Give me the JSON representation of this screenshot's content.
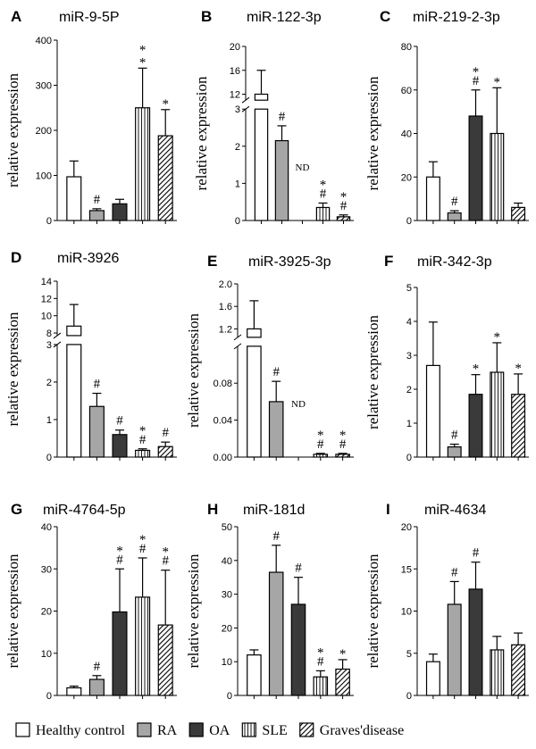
{
  "legend": {
    "items": [
      {
        "label": "Healthy control",
        "style": "white"
      },
      {
        "label": "RA",
        "style": "lightgray"
      },
      {
        "label": "OA",
        "style": "darkgray"
      },
      {
        "label": "SLE",
        "style": "vstripe"
      },
      {
        "label": "Graves'disease",
        "style": "diag"
      }
    ]
  },
  "colors": {
    "white": "#ffffff",
    "lightgray": "#a6a6a6",
    "darkgray": "#3a3a3a",
    "stroke": "#000000"
  },
  "chart_data": [
    {
      "id": "A",
      "letter": "A",
      "title": "miR-9-5P",
      "type": "bar",
      "ylabel": "relative expression",
      "categories": [
        "Healthy control",
        "RA",
        "OA",
        "SLE",
        "Graves'disease"
      ],
      "values": [
        97,
        22,
        37,
        250,
        188
      ],
      "errors": [
        35,
        4,
        10,
        88,
        58
      ],
      "marks": [
        [],
        [
          "#"
        ],
        [],
        [
          "*",
          "*"
        ],
        [
          "*"
        ]
      ],
      "nd": [
        false,
        false,
        false,
        false,
        false
      ],
      "ticks": [
        0,
        100,
        200,
        300,
        400
      ],
      "ylim": [
        0,
        400
      ]
    },
    {
      "id": "B",
      "letter": "B",
      "title": "miR-122-3p",
      "type": "bar",
      "ylabel": "relative expression",
      "categories": [
        "Healthy control",
        "RA",
        "OA",
        "SLE",
        "Graves'disease"
      ],
      "values": [
        12,
        2.15,
        0,
        0.35,
        0.1
      ],
      "errors": [
        4,
        0.4,
        0,
        0.12,
        0.05
      ],
      "marks": [
        [],
        [
          "#"
        ],
        [],
        [
          "*",
          "#"
        ],
        [
          "*",
          "#"
        ]
      ],
      "nd": [
        false,
        false,
        true,
        false,
        false
      ],
      "nd_label": "ND",
      "broken": true,
      "lower": {
        "range": [
          0,
          3
        ],
        "ticks": [
          0,
          1,
          2,
          3
        ]
      },
      "upper": {
        "range": [
          11,
          20
        ],
        "ticks": [
          12,
          16,
          20
        ]
      }
    },
    {
      "id": "C",
      "letter": "C",
      "title": "miR-219-2-3p",
      "type": "bar",
      "ylabel": "relative expression",
      "categories": [
        "Healthy control",
        "RA",
        "OA",
        "SLE",
        "Graves'disease"
      ],
      "values": [
        20,
        3.5,
        48,
        40,
        6
      ],
      "errors": [
        7,
        1,
        12,
        21,
        2
      ],
      "marks": [
        [],
        [
          "#"
        ],
        [
          "*",
          "#"
        ],
        [
          "*"
        ],
        []
      ],
      "nd": [
        false,
        false,
        false,
        false,
        false
      ],
      "ticks": [
        0,
        20,
        40,
        60,
        80
      ],
      "ylim": [
        0,
        80
      ]
    },
    {
      "id": "D",
      "letter": "D",
      "title": "miR-3926",
      "type": "bar",
      "ylabel": "relative expression",
      "categories": [
        "Healthy control",
        "RA",
        "OA",
        "SLE",
        "Graves'disease"
      ],
      "values": [
        8.8,
        1.35,
        0.6,
        0.18,
        0.28
      ],
      "errors": [
        2.5,
        0.35,
        0.12,
        0.04,
        0.12
      ],
      "marks": [
        [],
        [
          "#"
        ],
        [
          "#"
        ],
        [
          "*",
          "#"
        ],
        [
          "#"
        ]
      ],
      "nd": [
        false,
        false,
        false,
        false,
        false
      ],
      "broken": true,
      "lower": {
        "range": [
          0,
          3
        ],
        "ticks": [
          0,
          1,
          2,
          3
        ]
      },
      "upper": {
        "range": [
          7.7,
          14
        ],
        "ticks": [
          8,
          10,
          12,
          14
        ]
      }
    },
    {
      "id": "E",
      "letter": "E",
      "title": "miR-3925-3p",
      "type": "bar",
      "ylabel": "relative expression",
      "categories": [
        "Healthy control",
        "RA",
        "OA",
        "SLE",
        "Graves'disease"
      ],
      "values": [
        1.2,
        0.06,
        0,
        0.003,
        0.003
      ],
      "errors": [
        0.5,
        0.022,
        0,
        0.001,
        0.001
      ],
      "marks": [
        [],
        [
          "#"
        ],
        [],
        [
          "*",
          "#"
        ],
        [
          "*",
          "#"
        ]
      ],
      "nd": [
        false,
        false,
        true,
        false,
        false
      ],
      "nd_label": "ND",
      "broken": true,
      "lower": {
        "range": [
          0,
          0.12
        ],
        "ticks": [
          "0.00",
          "0.04",
          "0.08"
        ]
      },
      "upper": {
        "range": [
          1.05,
          2.0
        ],
        "ticks": [
          "1.2",
          "1.6",
          "2.0"
        ]
      }
    },
    {
      "id": "F",
      "letter": "F",
      "title": "miR-342-3p",
      "type": "bar",
      "ylabel": "relative expression",
      "categories": [
        "Healthy control",
        "RA",
        "OA",
        "SLE",
        "Graves'disease"
      ],
      "values": [
        2.7,
        0.3,
        1.85,
        2.5,
        1.85
      ],
      "errors": [
        1.28,
        0.08,
        0.58,
        0.87,
        0.6
      ],
      "marks": [
        [],
        [
          "#"
        ],
        [
          "*"
        ],
        [
          "*"
        ],
        [
          "*"
        ]
      ],
      "nd": [
        false,
        false,
        false,
        false,
        false
      ],
      "ticks": [
        0,
        1,
        2,
        3,
        4,
        5
      ],
      "ylim": [
        0,
        5
      ]
    },
    {
      "id": "G",
      "letter": "G",
      "title": "miR-4764-5p",
      "type": "bar",
      "ylabel": "relative expression",
      "categories": [
        "Healthy control",
        "RA",
        "OA",
        "SLE",
        "Graves'disease"
      ],
      "values": [
        1.8,
        3.8,
        19.8,
        23.3,
        16.7
      ],
      "errors": [
        0.4,
        0.9,
        10.2,
        9.3,
        13
      ],
      "marks": [
        [],
        [
          "#"
        ],
        [
          "*",
          "#"
        ],
        [
          "*",
          "#"
        ],
        [
          "*",
          "#"
        ]
      ],
      "nd": [
        false,
        false,
        false,
        false,
        false
      ],
      "ticks": [
        0,
        10,
        20,
        30,
        40
      ],
      "ylim": [
        0,
        40
      ]
    },
    {
      "id": "H",
      "letter": "H",
      "title": "miR-181d",
      "type": "bar",
      "ylabel": "relative expression",
      "categories": [
        "Healthy control",
        "RA",
        "OA",
        "SLE",
        "Graves'disease"
      ],
      "values": [
        12,
        36.5,
        27,
        5.5,
        7.8
      ],
      "errors": [
        1.5,
        8,
        8,
        1.8,
        2.8
      ],
      "marks": [
        [],
        [
          "#"
        ],
        [
          "#"
        ],
        [
          "*",
          "#"
        ],
        [
          "*"
        ]
      ],
      "nd": [
        false,
        false,
        false,
        false,
        false
      ],
      "ticks": [
        0,
        10,
        20,
        30,
        40,
        50
      ],
      "ylim": [
        0,
        50
      ]
    },
    {
      "id": "I",
      "letter": "I",
      "title": "miR-4634",
      "type": "bar",
      "ylabel": "relative expression",
      "categories": [
        "Healthy control",
        "RA",
        "OA",
        "SLE",
        "Graves'disease"
      ],
      "values": [
        4,
        10.8,
        12.6,
        5.4,
        6
      ],
      "errors": [
        0.9,
        2.7,
        3.2,
        1.6,
        1.4
      ],
      "marks": [
        [],
        [
          "#"
        ],
        [
          "#"
        ],
        [],
        []
      ],
      "nd": [
        false,
        false,
        false,
        false,
        false
      ],
      "ticks": [
        0,
        5,
        10,
        15,
        20
      ],
      "ylim": [
        0,
        20
      ]
    }
  ]
}
